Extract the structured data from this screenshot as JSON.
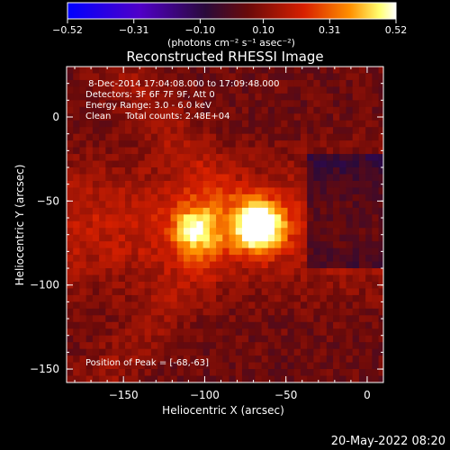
{
  "chart_data": {
    "type": "heatmap",
    "title": "Reconstructed RHESSI Image",
    "xlabel": "Heliocentric X (arcsec)",
    "ylabel": "Heliocentric Y (arcsec)",
    "xlim": [
      -185,
      10
    ],
    "ylim": [
      -158,
      30
    ],
    "x_ticks": [
      -150,
      -100,
      -50,
      0
    ],
    "y_ticks": [
      -150,
      -100,
      -50,
      0
    ],
    "x_tick_labels": [
      "−150",
      "−100",
      "−50",
      "0"
    ],
    "y_tick_labels": [
      "−150",
      "−100",
      "−50",
      "0"
    ],
    "colorbar": {
      "min": -0.52,
      "max": 0.52,
      "ticks": [
        -0.52,
        -0.31,
        -0.1,
        0.1,
        0.31,
        0.52
      ],
      "tick_labels": [
        "−0.52",
        "−0.31",
        "−0.10",
        "0.10",
        "0.31",
        "0.52"
      ],
      "colormap": "rainbow",
      "colors": [
        "#0000ff",
        "#7000c0",
        "#301040",
        "#801010",
        "#e03000",
        "#ff8000",
        "#ffff80",
        "#ffffff"
      ]
    },
    "colorbar_unit": "(photons cm⁻² s⁻¹ asec⁻²)",
    "sources": [
      {
        "x": -68,
        "y": -63,
        "peak": 0.52
      },
      {
        "x": -108,
        "y": -65,
        "peak": 0.32
      }
    ],
    "peak_position": [
      -68,
      -63
    ],
    "annotations": [
      " 8-Dec-2014 17:04:08.000 to 17:09:48.000",
      "Detectors: 3F 6F 7F 9F, Att 0",
      "Energy Range: 3.0 - 6.0 keV",
      "Clean     Total counts: 2.48E+04"
    ],
    "peak_label": "Position of Peak = [-68,-63]"
  },
  "timestamp": "20-May-2022 08:20"
}
